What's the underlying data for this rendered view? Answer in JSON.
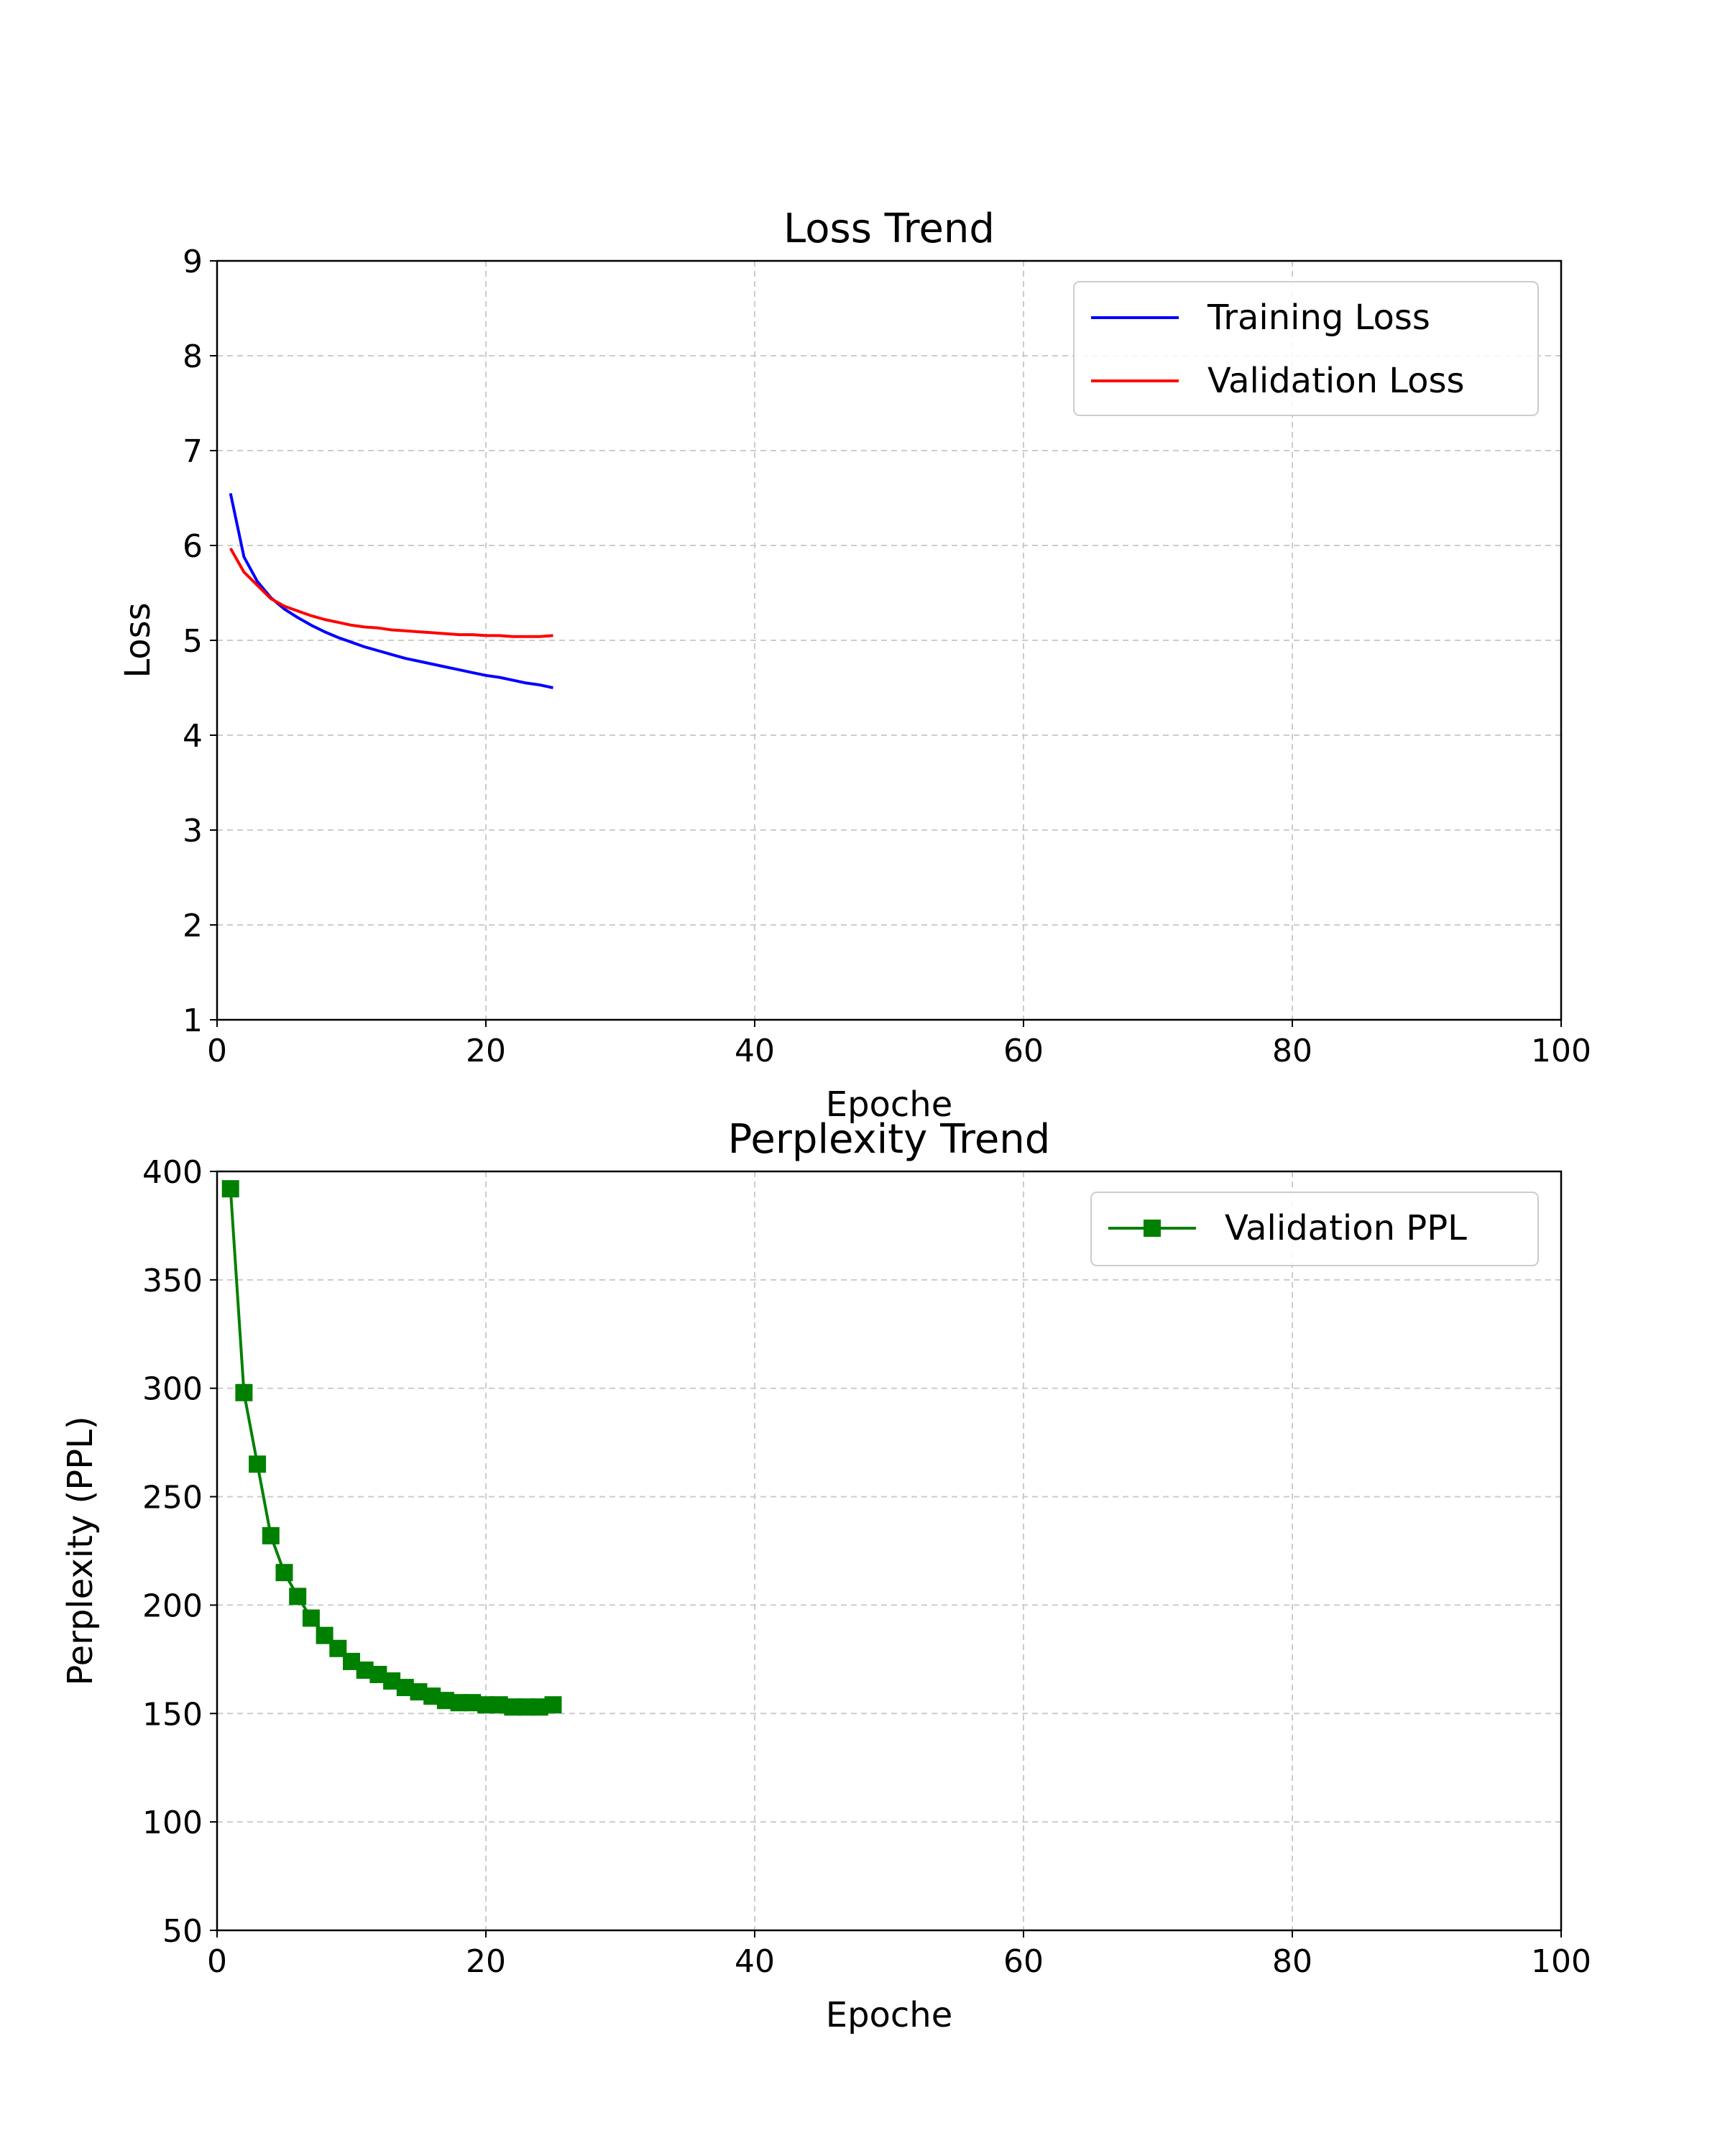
{
  "chart_data": [
    {
      "type": "line",
      "title": "Loss Trend",
      "xlabel": "Epoche",
      "ylabel": "Loss",
      "xlim": [
        0,
        100
      ],
      "ylim": [
        1,
        9
      ],
      "xticks": [
        0,
        20,
        40,
        60,
        80,
        100
      ],
      "yticks": [
        1,
        2,
        3,
        4,
        5,
        6,
        7,
        8,
        9
      ],
      "grid": true,
      "legend_position": "top-right",
      "x": [
        1,
        2,
        3,
        4,
        5,
        6,
        7,
        8,
        9,
        10,
        11,
        12,
        13,
        14,
        15,
        16,
        17,
        18,
        19,
        20,
        21,
        22,
        23,
        24,
        25
      ],
      "series": [
        {
          "name": "Training Loss",
          "color": "#0000ff",
          "marker": "none",
          "values": [
            6.55,
            5.88,
            5.62,
            5.45,
            5.33,
            5.24,
            5.16,
            5.09,
            5.03,
            4.98,
            4.93,
            4.89,
            4.85,
            4.81,
            4.78,
            4.75,
            4.72,
            4.69,
            4.66,
            4.63,
            4.61,
            4.58,
            4.55,
            4.53,
            4.5
          ]
        },
        {
          "name": "Validation Loss",
          "color": "#ff0000",
          "marker": "none",
          "values": [
            5.97,
            5.72,
            5.58,
            5.44,
            5.36,
            5.31,
            5.26,
            5.22,
            5.19,
            5.16,
            5.14,
            5.13,
            5.11,
            5.1,
            5.09,
            5.08,
            5.07,
            5.06,
            5.06,
            5.05,
            5.05,
            5.04,
            5.04,
            5.04,
            5.05
          ]
        }
      ]
    },
    {
      "type": "line",
      "title": "Perplexity Trend",
      "xlabel": "Epoche",
      "ylabel": "Perplexity (PPL)",
      "xlim": [
        0,
        100
      ],
      "ylim": [
        50,
        400
      ],
      "xticks": [
        0,
        20,
        40,
        60,
        80,
        100
      ],
      "yticks": [
        50,
        100,
        150,
        200,
        250,
        300,
        350,
        400
      ],
      "grid": true,
      "legend_position": "top-right",
      "x": [
        1,
        2,
        3,
        4,
        5,
        6,
        7,
        8,
        9,
        10,
        11,
        12,
        13,
        14,
        15,
        16,
        17,
        18,
        19,
        20,
        21,
        22,
        23,
        24,
        25
      ],
      "series": [
        {
          "name": "Validation PPL",
          "color": "#008000",
          "marker": "square",
          "values": [
            392,
            298,
            265,
            232,
            215,
            204,
            194,
            186,
            180,
            174,
            170,
            168,
            165,
            162,
            160,
            158,
            156,
            155,
            155,
            154,
            154,
            153,
            153,
            153,
            154
          ]
        }
      ]
    }
  ]
}
